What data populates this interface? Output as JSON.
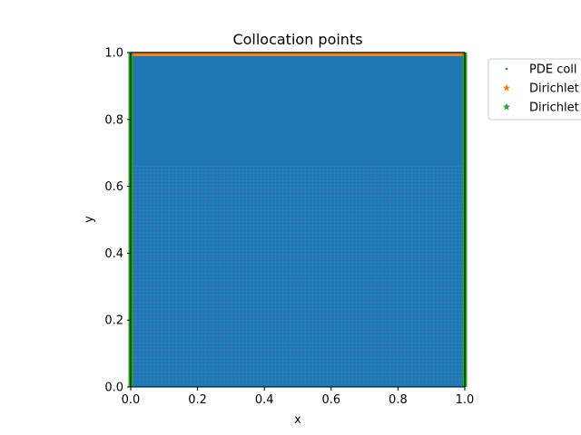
{
  "chart_data": {
    "type": "scatter",
    "title": "Collocation points",
    "xlabel": "x",
    "ylabel": "y",
    "xlim": [
      0.0,
      1.0
    ],
    "ylim": [
      0.0,
      1.0
    ],
    "xticks": [
      "0.0",
      "0.2",
      "0.4",
      "0.6",
      "0.8",
      "1.0"
    ],
    "yticks": [
      "0.0",
      "0.2",
      "0.4",
      "0.6",
      "0.8",
      "1.0"
    ],
    "grid": false,
    "legend_placement": "outside-top-right",
    "series": [
      {
        "name": "PDE coll",
        "marker": "point",
        "color": "#1f77b4",
        "domain_x": [
          0.0,
          1.0
        ],
        "domain_y": [
          0.0,
          1.0
        ]
      },
      {
        "name": "Dirichlet",
        "marker": "star",
        "color": "#ff7f0e",
        "boundary": "top",
        "y": 1.0
      },
      {
        "name": "Dirichlet",
        "marker": "star",
        "color": "#2ca02c",
        "boundary": "left-right",
        "x": [
          0.0,
          1.0
        ]
      }
    ]
  }
}
